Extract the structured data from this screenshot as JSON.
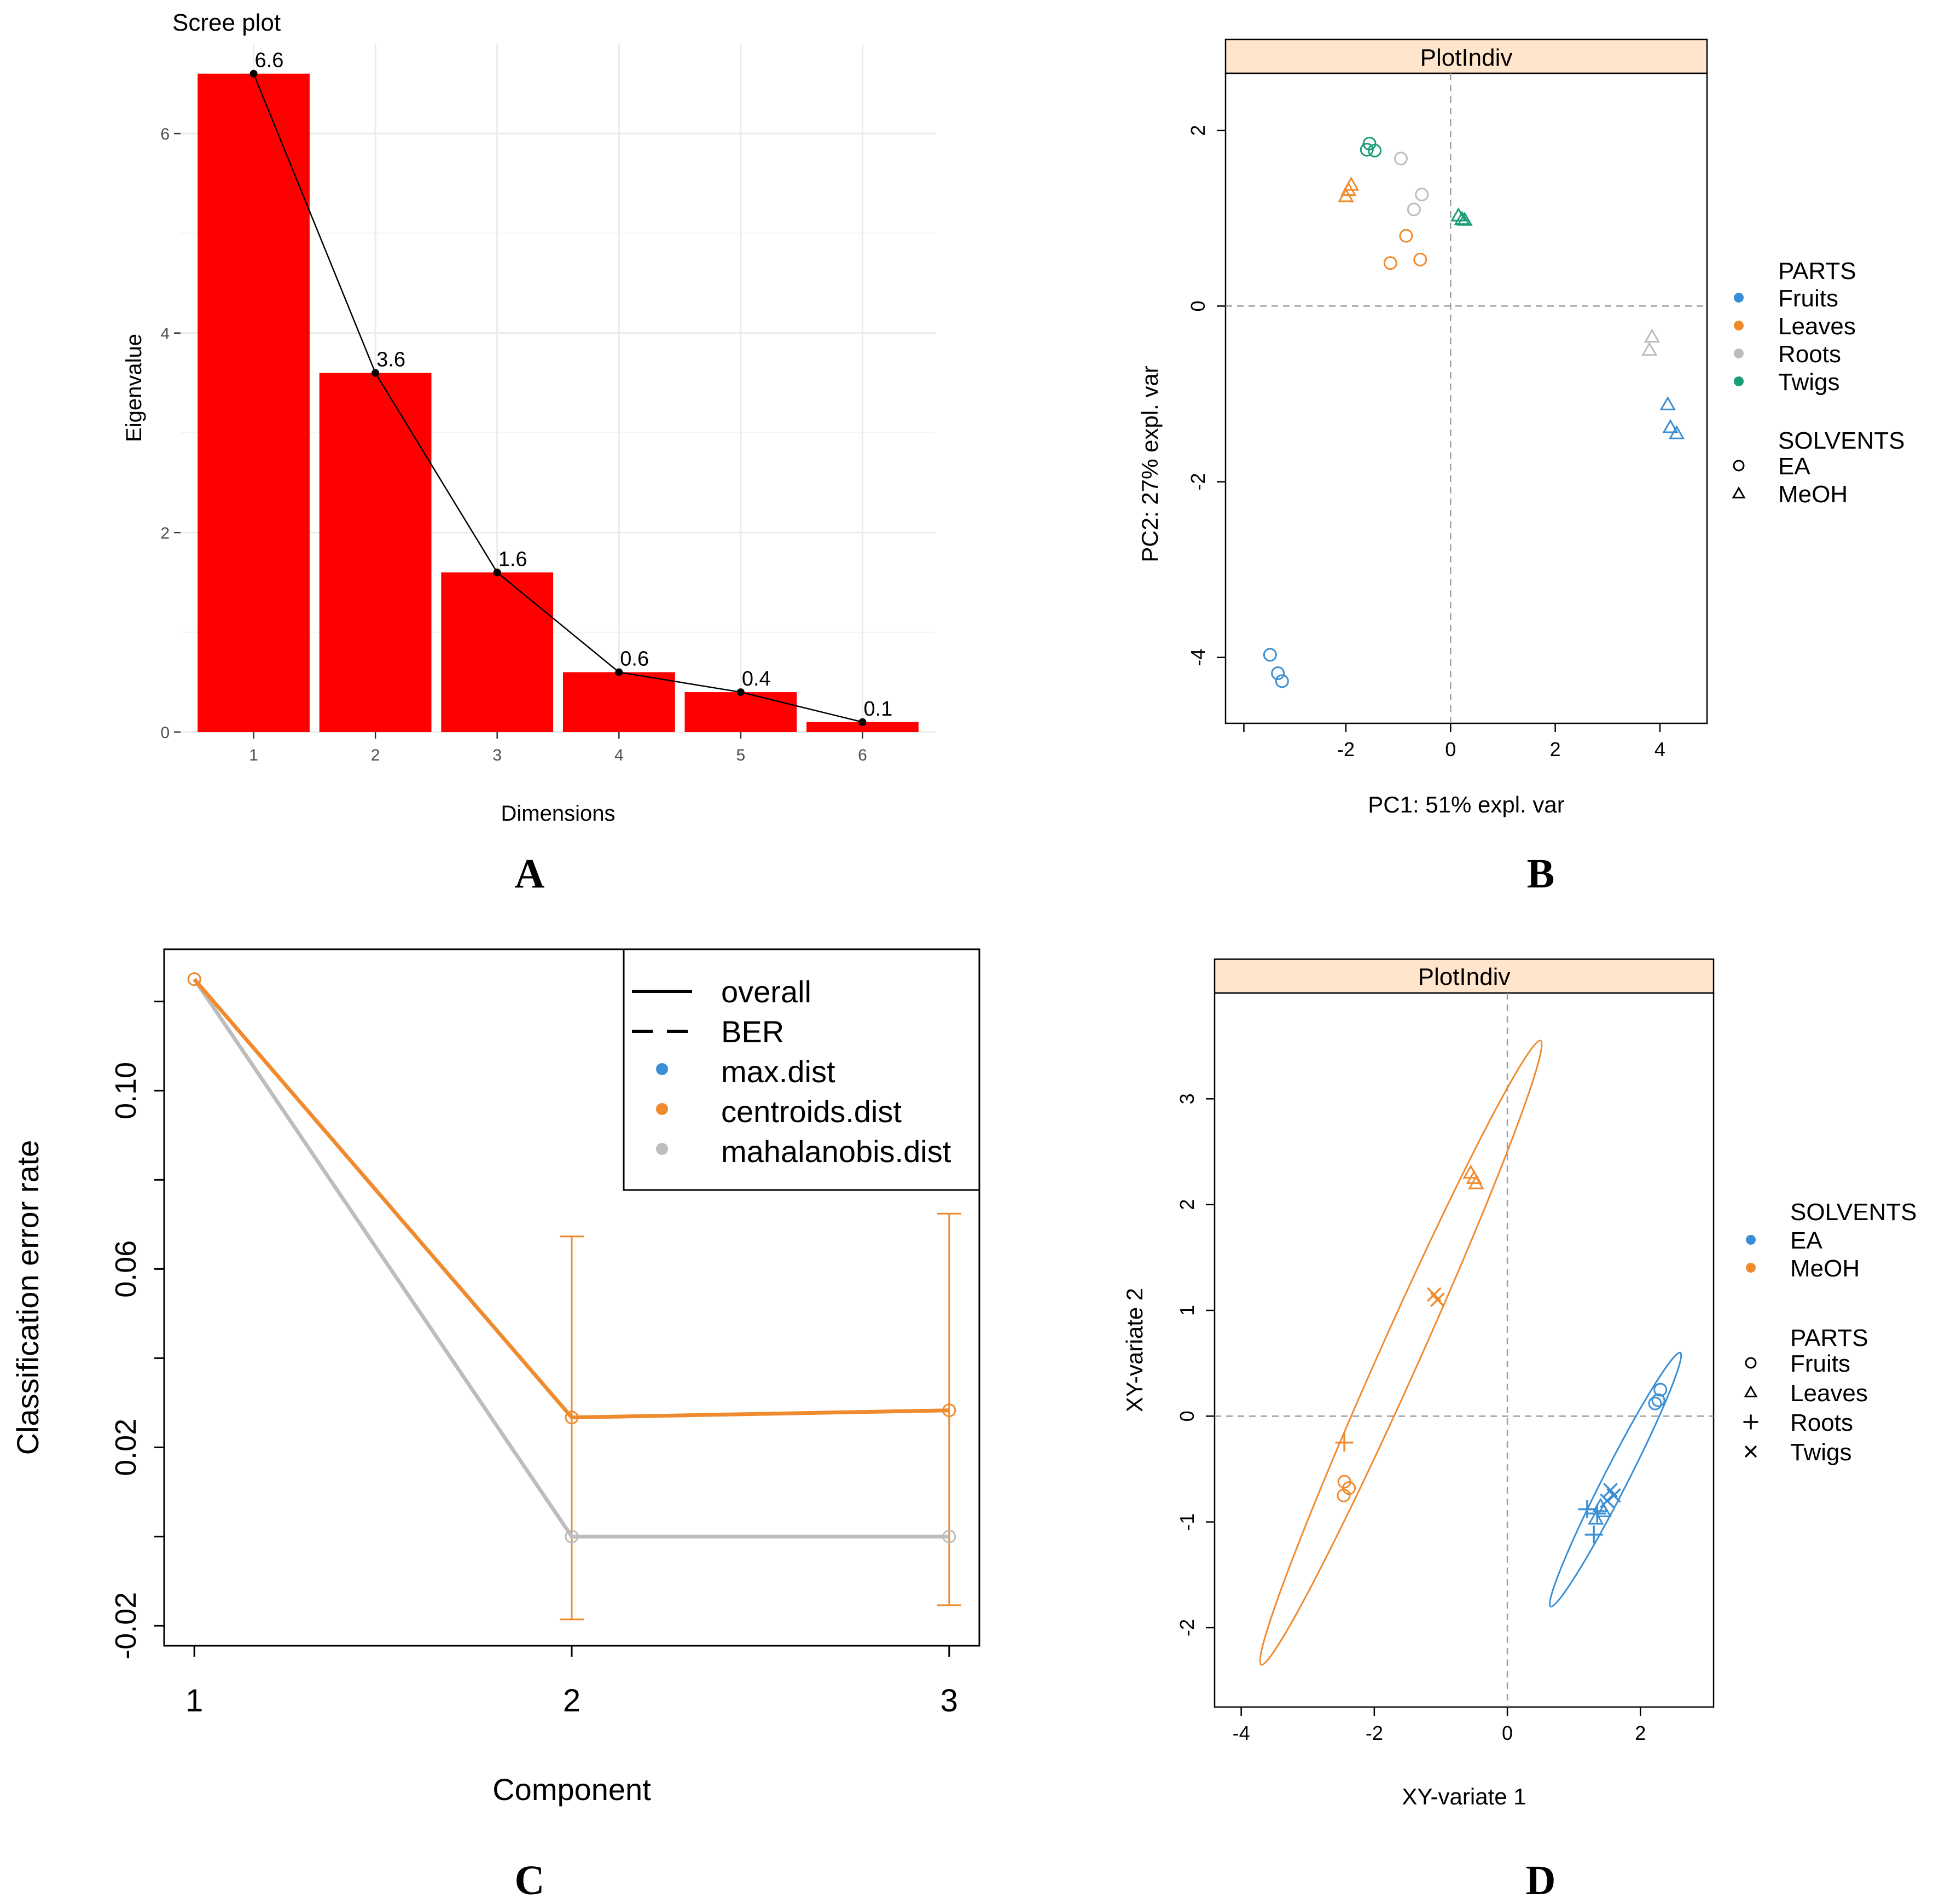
{
  "colors": {
    "blue": "#3A8FD4",
    "orange": "#F08A2E",
    "grey": "#BDBDBD",
    "green": "#1B9E77",
    "red": "#FF0000",
    "strip": "#FFE5CC"
  },
  "panel_letters": [
    "A",
    "B",
    "C",
    "D"
  ],
  "chart_data": [
    {
      "panel": "A",
      "type": "bar",
      "title": "Scree plot",
      "xlabel": "Dimensions",
      "ylabel": "Eigenvalue",
      "categories": [
        "1",
        "2",
        "3",
        "4",
        "5",
        "6"
      ],
      "values": [
        6.6,
        3.6,
        1.6,
        0.6,
        0.4,
        0.1
      ],
      "value_labels": [
        "6.6",
        "3.6",
        "1.6",
        "0.6",
        "0.4",
        "0.1"
      ],
      "ylim": [
        0,
        6.9
      ],
      "yticks": [
        0,
        2,
        4,
        6
      ],
      "ytick_labels": [
        "0",
        "2",
        "4",
        "6"
      ],
      "line_overlay": true,
      "grid": true
    },
    {
      "panel": "B",
      "type": "scatter",
      "strip_title": "PlotIndiv",
      "xlabel": "PC1: 51% expl. var",
      "ylabel": "PC2: 27% expl. var",
      "xlim": [
        -4.3,
        4.9
      ],
      "ylim": [
        -4.75,
        2.65
      ],
      "xticks": [
        -2,
        0,
        2,
        4
      ],
      "xtick_labels": [
        "-2",
        "0",
        "2",
        "4"
      ],
      "yticks": [
        -4,
        -2,
        0,
        2
      ],
      "ytick_labels": [
        "-4",
        "-2",
        "0",
        "2"
      ],
      "legend": {
        "color_title": "PARTS",
        "color_entries": [
          {
            "label": "Fruits",
            "color": "#3A8FD4"
          },
          {
            "label": "Leaves",
            "color": "#F08A2E"
          },
          {
            "label": "Roots",
            "color": "#BDBDBD"
          },
          {
            "label": "Twigs",
            "color": "#1B9E77"
          }
        ],
        "shape_title": "SOLVENTS",
        "shape_entries": [
          {
            "label": "EA",
            "shape": "circle"
          },
          {
            "label": "MeOH",
            "shape": "triangle"
          }
        ],
        "placement": "right"
      },
      "points": [
        {
          "x": -1.55,
          "y": 1.85,
          "group": "Twigs",
          "shape": "circle"
        },
        {
          "x": -1.6,
          "y": 1.78,
          "group": "Twigs",
          "shape": "circle"
        },
        {
          "x": -1.45,
          "y": 1.77,
          "group": "Twigs",
          "shape": "circle"
        },
        {
          "x": 0.15,
          "y": 1.03,
          "group": "Twigs",
          "shape": "triangle"
        },
        {
          "x": 0.22,
          "y": 0.99,
          "group": "Twigs",
          "shape": "triangle"
        },
        {
          "x": 0.27,
          "y": 0.98,
          "group": "Twigs",
          "shape": "triangle"
        },
        {
          "x": -0.95,
          "y": 1.68,
          "group": "Roots",
          "shape": "circle"
        },
        {
          "x": -0.55,
          "y": 1.27,
          "group": "Roots",
          "shape": "circle"
        },
        {
          "x": -0.7,
          "y": 1.1,
          "group": "Roots",
          "shape": "circle"
        },
        {
          "x": 3.85,
          "y": -0.35,
          "group": "Roots",
          "shape": "triangle"
        },
        {
          "x": 3.8,
          "y": -0.5,
          "group": "Roots",
          "shape": "triangle"
        },
        {
          "x": -1.9,
          "y": 1.38,
          "group": "Leaves",
          "shape": "triangle"
        },
        {
          "x": -1.95,
          "y": 1.32,
          "group": "Leaves",
          "shape": "triangle"
        },
        {
          "x": -2.0,
          "y": 1.25,
          "group": "Leaves",
          "shape": "triangle"
        },
        {
          "x": -0.85,
          "y": 0.8,
          "group": "Leaves",
          "shape": "circle"
        },
        {
          "x": -1.15,
          "y": 0.49,
          "group": "Leaves",
          "shape": "circle"
        },
        {
          "x": -0.58,
          "y": 0.53,
          "group": "Leaves",
          "shape": "circle"
        },
        {
          "x": 4.15,
          "y": -1.12,
          "group": "Fruits",
          "shape": "triangle"
        },
        {
          "x": 4.2,
          "y": -1.38,
          "group": "Fruits",
          "shape": "triangle"
        },
        {
          "x": 4.32,
          "y": -1.45,
          "group": "Fruits",
          "shape": "triangle"
        },
        {
          "x": -3.45,
          "y": -3.97,
          "group": "Fruits",
          "shape": "circle"
        },
        {
          "x": -3.3,
          "y": -4.18,
          "group": "Fruits",
          "shape": "circle"
        },
        {
          "x": -3.22,
          "y": -4.27,
          "group": "Fruits",
          "shape": "circle"
        }
      ]
    },
    {
      "panel": "C",
      "type": "line",
      "xlabel": "Component",
      "ylabel": "Classification error rate",
      "categories": [
        "1",
        "2",
        "3"
      ],
      "x": [
        1,
        2,
        3
      ],
      "ylim": [
        -0.0245,
        0.1317
      ],
      "yticks": [
        -0.02,
        0.02,
        0.06,
        0.1
      ],
      "ytick_labels": [
        "-0.02",
        "0.02",
        "0.06",
        "0.10"
      ],
      "series": [
        {
          "name": "mahalanobis.dist",
          "color": "#BDBDBD",
          "values": [
            0.125,
            0.0,
            0.0
          ]
        },
        {
          "name": "centroids.dist",
          "color": "#F08A2E",
          "values": [
            0.125,
            0.0267,
            0.0283
          ]
        }
      ],
      "error_bars": [
        {
          "x": 2,
          "center": 0.0267,
          "low": -0.0186,
          "high": 0.0673
        },
        {
          "x": 3,
          "center": 0.0283,
          "low": -0.0154,
          "high": 0.0724
        }
      ],
      "legend": {
        "placement": "top-right",
        "entries": [
          {
            "label": "overall",
            "kind": "solid-line"
          },
          {
            "label": "BER",
            "kind": "dashed-line"
          },
          {
            "label": "max.dist",
            "kind": "dot",
            "color": "#3A8FD4"
          },
          {
            "label": "centroids.dist",
            "kind": "dot",
            "color": "#F08A2E"
          },
          {
            "label": "mahalanobis.dist",
            "kind": "dot",
            "color": "#BDBDBD"
          }
        ]
      }
    },
    {
      "panel": "D",
      "type": "scatter",
      "strip_title": "PlotIndiv",
      "xlabel": "XY-variate 1",
      "ylabel": "XY-variate 2",
      "xlim": [
        -4.4,
        3.1
      ],
      "ylim": [
        -2.75,
        4.0
      ],
      "xticks": [
        -4,
        -2,
        0,
        2
      ],
      "xtick_labels": [
        "-4",
        "-2",
        "0",
        "2"
      ],
      "yticks": [
        -2,
        -1,
        0,
        1,
        2,
        3
      ],
      "ytick_labels": [
        "-2",
        "-1",
        "0",
        "1",
        "2",
        "3"
      ],
      "legend": {
        "color_title": "SOLVENTS",
        "color_entries": [
          {
            "label": "EA",
            "color": "#3A8FD4"
          },
          {
            "label": "MeOH",
            "color": "#F08A2E"
          }
        ],
        "shape_title": "PARTS",
        "shape_entries": [
          {
            "label": "Fruits",
            "shape": "circle"
          },
          {
            "label": "Leaves",
            "shape": "triangle"
          },
          {
            "label": "Roots",
            "shape": "plus"
          },
          {
            "label": "Twigs",
            "shape": "cross"
          }
        ],
        "placement": "right"
      },
      "ellipses": [
        {
          "group": "MeOH",
          "color": "#F08A2E",
          "ends": [
            [
              -3.7,
              -2.35
            ],
            [
              0.5,
              3.55
            ]
          ],
          "half_width": 0.3
        },
        {
          "group": "EA",
          "color": "#3A8FD4",
          "ends": [
            [
              0.65,
              -1.8
            ],
            [
              2.6,
              0.6
            ]
          ],
          "half_width": 0.18
        }
      ],
      "points": [
        {
          "x": -0.55,
          "y": 2.3,
          "group": "MeOH",
          "shape": "triangle"
        },
        {
          "x": -0.5,
          "y": 2.25,
          "group": "MeOH",
          "shape": "triangle"
        },
        {
          "x": -0.47,
          "y": 2.2,
          "group": "MeOH",
          "shape": "triangle"
        },
        {
          "x": -1.1,
          "y": 1.15,
          "group": "MeOH",
          "shape": "cross"
        },
        {
          "x": -1.05,
          "y": 1.1,
          "group": "MeOH",
          "shape": "cross"
        },
        {
          "x": -2.45,
          "y": -0.25,
          "group": "MeOH",
          "shape": "plus"
        },
        {
          "x": -2.45,
          "y": -0.62,
          "group": "MeOH",
          "shape": "circle"
        },
        {
          "x": -2.38,
          "y": -0.68,
          "group": "MeOH",
          "shape": "circle"
        },
        {
          "x": -2.46,
          "y": -0.75,
          "group": "MeOH",
          "shape": "circle"
        },
        {
          "x": 2.3,
          "y": 0.25,
          "group": "EA",
          "shape": "circle"
        },
        {
          "x": 2.27,
          "y": 0.15,
          "group": "EA",
          "shape": "circle"
        },
        {
          "x": 2.22,
          "y": 0.12,
          "group": "EA",
          "shape": "circle"
        },
        {
          "x": 1.55,
          "y": -0.7,
          "group": "EA",
          "shape": "cross"
        },
        {
          "x": 1.6,
          "y": -0.75,
          "group": "EA",
          "shape": "cross"
        },
        {
          "x": 1.5,
          "y": -0.8,
          "group": "EA",
          "shape": "cross"
        },
        {
          "x": 1.2,
          "y": -0.88,
          "group": "EA",
          "shape": "plus"
        },
        {
          "x": 1.35,
          "y": -0.92,
          "group": "EA",
          "shape": "plus"
        },
        {
          "x": 1.3,
          "y": -1.12,
          "group": "EA",
          "shape": "plus"
        },
        {
          "x": 1.4,
          "y": -0.85,
          "group": "EA",
          "shape": "triangle"
        },
        {
          "x": 1.45,
          "y": -0.9,
          "group": "EA",
          "shape": "triangle"
        },
        {
          "x": 1.33,
          "y": -0.97,
          "group": "EA",
          "shape": "triangle"
        }
      ]
    }
  ]
}
